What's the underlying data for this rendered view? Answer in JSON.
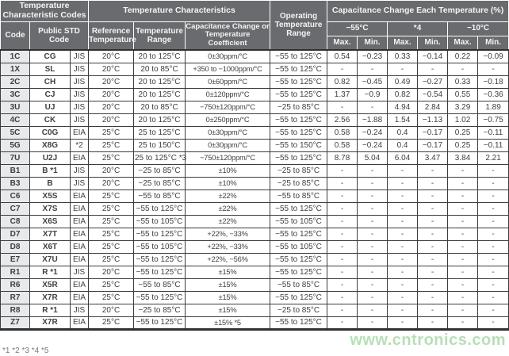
{
  "header": {
    "group_codes": "Temperature Characteristic Codes",
    "group_characteristics": "Temperature Characteristics",
    "operating_range": "Operating Temperature Range",
    "group_cap_change": "Capacitance Change Each Temperature (%)",
    "col_code": "Code",
    "col_public_std": "Public STD Code",
    "col_ref_temp": "Reference Temperature",
    "col_temp_range": "Temperature Range",
    "col_coefficient": "Capacitance Change or Temperature Coefficient",
    "temp_m55": "−55°C",
    "temp_s4": "*4",
    "temp_m10": "−10°C",
    "max_label": "Max.",
    "min_label": "Min."
  },
  "table": {
    "fields": [
      "code",
      "std_code",
      "std",
      "ref_temp",
      "temp_range",
      "coefficient",
      "op_range",
      "m55_max",
      "m55_min",
      "s4_max",
      "s4_min",
      "m10_max",
      "m10_min"
    ],
    "rows": [
      {
        "code": "1C",
        "std_code": "CG",
        "std": "JIS",
        "ref_temp": "20°C",
        "temp_range": "20 to 125°C",
        "coefficient": "0±30ppm/°C",
        "op_range": "−55 to 125°C",
        "m55_max": "0.54",
        "m55_min": "−0.23",
        "s4_max": "0.33",
        "s4_min": "−0.14",
        "m10_max": "0.22",
        "m10_min": "−0.09"
      },
      {
        "code": "1X",
        "std_code": "SL",
        "std": "JIS",
        "ref_temp": "20°C",
        "temp_range": "20 to 85°C",
        "coefficient": "+350 to −1000ppm/°C",
        "op_range": "−55 to 125°C",
        "m55_max": "-",
        "m55_min": "-",
        "s4_max": "-",
        "s4_min": "-",
        "m10_max": "-",
        "m10_min": "-"
      },
      {
        "code": "2C",
        "std_code": "CH",
        "std": "JIS",
        "ref_temp": "20°C",
        "temp_range": "20 to 125°C",
        "coefficient": "0±60ppm/°C",
        "op_range": "−55 to 125°C",
        "m55_max": "0.82",
        "m55_min": "−0.45",
        "s4_max": "0.49",
        "s4_min": "−0.27",
        "m10_max": "0.33",
        "m10_min": "−0.18"
      },
      {
        "code": "3C",
        "std_code": "CJ",
        "std": "JIS",
        "ref_temp": "20°C",
        "temp_range": "20 to 125°C",
        "coefficient": "0±120ppm/°C",
        "op_range": "−55 to 125°C",
        "m55_max": "1.37",
        "m55_min": "−0.9",
        "s4_max": "0.82",
        "s4_min": "−0.54",
        "m10_max": "0.55",
        "m10_min": "−0.36"
      },
      {
        "code": "3U",
        "std_code": "UJ",
        "std": "JIS",
        "ref_temp": "20°C",
        "temp_range": "20 to 85°C",
        "coefficient": "−750±120ppm/°C",
        "op_range": "−25 to 85°C",
        "m55_max": "-",
        "m55_min": "-",
        "s4_max": "4.94",
        "s4_min": "2.84",
        "m10_max": "3.29",
        "m10_min": "1.89"
      },
      {
        "code": "4C",
        "std_code": "CK",
        "std": "JIS",
        "ref_temp": "20°C",
        "temp_range": "20 to 125°C",
        "coefficient": "0±250ppm/°C",
        "op_range": "−55 to 125°C",
        "m55_max": "2.56",
        "m55_min": "−1.88",
        "s4_max": "1.54",
        "s4_min": "−1.13",
        "m10_max": "1.02",
        "m10_min": "−0.75"
      },
      {
        "code": "5C",
        "std_code": "C0G",
        "std": "EIA",
        "ref_temp": "25°C",
        "temp_range": "25 to 125°C",
        "coefficient": "0±30ppm/°C",
        "op_range": "−55 to 125°C",
        "m55_max": "0.58",
        "m55_min": "−0.24",
        "s4_max": "0.4",
        "s4_min": "−0.17",
        "m10_max": "0.25",
        "m10_min": "−0.11"
      },
      {
        "code": "5G",
        "std_code": "X8G",
        "std": "*2",
        "ref_temp": "25°C",
        "temp_range": "25 to 150°C",
        "coefficient": "0±30ppm/°C",
        "op_range": "−55 to 150°C",
        "m55_max": "0.58",
        "m55_min": "−0.24",
        "s4_max": "0.4",
        "s4_min": "−0.17",
        "m10_max": "0.25",
        "m10_min": "−0.11"
      },
      {
        "code": "7U",
        "std_code": "U2J",
        "std": "EIA",
        "ref_temp": "25°C",
        "temp_range": "25 to 125°C *3",
        "coefficient": "−750±120ppm/°C",
        "op_range": "−55 to 125°C",
        "m55_max": "8.78",
        "m55_min": "5.04",
        "s4_max": "6.04",
        "s4_min": "3.47",
        "m10_max": "3.84",
        "m10_min": "2.21"
      },
      {
        "code": "B1",
        "std_code": "B *1",
        "std": "JIS",
        "ref_temp": "20°C",
        "temp_range": "−25 to 85°C",
        "coefficient": "±10%",
        "op_range": "−25 to 85°C",
        "m55_max": "-",
        "m55_min": "-",
        "s4_max": "-",
        "s4_min": "-",
        "m10_max": "-",
        "m10_min": "-"
      },
      {
        "code": "B3",
        "std_code": "B",
        "std": "JIS",
        "ref_temp": "20°C",
        "temp_range": "−25 to 85°C",
        "coefficient": "±10%",
        "op_range": "−25 to 85°C",
        "m55_max": "-",
        "m55_min": "-",
        "s4_max": "-",
        "s4_min": "-",
        "m10_max": "-",
        "m10_min": "-"
      },
      {
        "code": "C6",
        "std_code": "X5S",
        "std": "EIA",
        "ref_temp": "25°C",
        "temp_range": "−55 to 85°C",
        "coefficient": "±22%",
        "op_range": "−55 to 85°C",
        "m55_max": "-",
        "m55_min": "-",
        "s4_max": "-",
        "s4_min": "-",
        "m10_max": "-",
        "m10_min": "-"
      },
      {
        "code": "C7",
        "std_code": "X7S",
        "std": "EIA",
        "ref_temp": "25°C",
        "temp_range": "−55 to 125°C",
        "coefficient": "±22%",
        "op_range": "−55 to 125°C",
        "m55_max": "-",
        "m55_min": "-",
        "s4_max": "-",
        "s4_min": "-",
        "m10_max": "-",
        "m10_min": "-"
      },
      {
        "code": "C8",
        "std_code": "X6S",
        "std": "EIA",
        "ref_temp": "25°C",
        "temp_range": "−55 to 105°C",
        "coefficient": "±22%",
        "op_range": "−55 to 105°C",
        "m55_max": "-",
        "m55_min": "-",
        "s4_max": "-",
        "s4_min": "-",
        "m10_max": "-",
        "m10_min": "-"
      },
      {
        "code": "D7",
        "std_code": "X7T",
        "std": "EIA",
        "ref_temp": "25°C",
        "temp_range": "−55 to 125°C",
        "coefficient": "+22%, −33%",
        "op_range": "−55 to 125°C",
        "m55_max": "-",
        "m55_min": "-",
        "s4_max": "-",
        "s4_min": "-",
        "m10_max": "-",
        "m10_min": "-"
      },
      {
        "code": "D8",
        "std_code": "X6T",
        "std": "EIA",
        "ref_temp": "25°C",
        "temp_range": "−55 to 105°C",
        "coefficient": "+22%, −33%",
        "op_range": "−55 to 105°C",
        "m55_max": "-",
        "m55_min": "-",
        "s4_max": "-",
        "s4_min": "-",
        "m10_max": "-",
        "m10_min": "-"
      },
      {
        "code": "E7",
        "std_code": "X7U",
        "std": "EIA",
        "ref_temp": "25°C",
        "temp_range": "−55 to 125°C",
        "coefficient": "+22%, −56%",
        "op_range": "−55 to 125°C",
        "m55_max": "-",
        "m55_min": "-",
        "s4_max": "-",
        "s4_min": "-",
        "m10_max": "-",
        "m10_min": "-"
      },
      {
        "code": "R1",
        "std_code": "R *1",
        "std": "JIS",
        "ref_temp": "20°C",
        "temp_range": "−55 to 125°C",
        "coefficient": "±15%",
        "op_range": "−55 to 125°C",
        "m55_max": "-",
        "m55_min": "-",
        "s4_max": "-",
        "s4_min": "-",
        "m10_max": "-",
        "m10_min": "-"
      },
      {
        "code": "R6",
        "std_code": "X5R",
        "std": "EIA",
        "ref_temp": "25°C",
        "temp_range": "−55 to 85°C",
        "coefficient": "±15%",
        "op_range": "−55 to 85°C",
        "m55_max": "-",
        "m55_min": "-",
        "s4_max": "-",
        "s4_min": "-",
        "m10_max": "-",
        "m10_min": "-"
      },
      {
        "code": "R7",
        "std_code": "X7R",
        "std": "EIA",
        "ref_temp": "25°C",
        "temp_range": "−55 to 125°C",
        "coefficient": "±15%",
        "op_range": "−55 to 125°C",
        "m55_max": "-",
        "m55_min": "-",
        "s4_max": "-",
        "s4_min": "-",
        "m10_max": "-",
        "m10_min": "-"
      },
      {
        "code": "R8",
        "std_code": "R *1",
        "std": "JIS",
        "ref_temp": "20°C",
        "temp_range": "−25 to 85°C",
        "coefficient": "±15%",
        "op_range": "−25 to 85°C",
        "m55_max": "-",
        "m55_min": "-",
        "s4_max": "-",
        "s4_min": "-",
        "m10_max": "-",
        "m10_min": "-"
      },
      {
        "code": "Z7",
        "std_code": "X7R",
        "std": "EIA",
        "ref_temp": "25°C",
        "temp_range": "−55 to 125°C",
        "coefficient": "±15% *5",
        "op_range": "−55 to 125°C",
        "m55_max": "-",
        "m55_min": "-",
        "s4_max": "-",
        "s4_min": "-",
        "m10_max": "-",
        "m10_min": "-"
      }
    ]
  },
  "footnote_clipped": "*1 *2 *3 *4 *5",
  "watermark": "www.cntronics.com",
  "colors": {
    "header_bg": "#6a6b6e",
    "code_col_bg": "#e8e9ea",
    "border": "#3c3d3f",
    "watermark_green": "#b7dfb7"
  }
}
